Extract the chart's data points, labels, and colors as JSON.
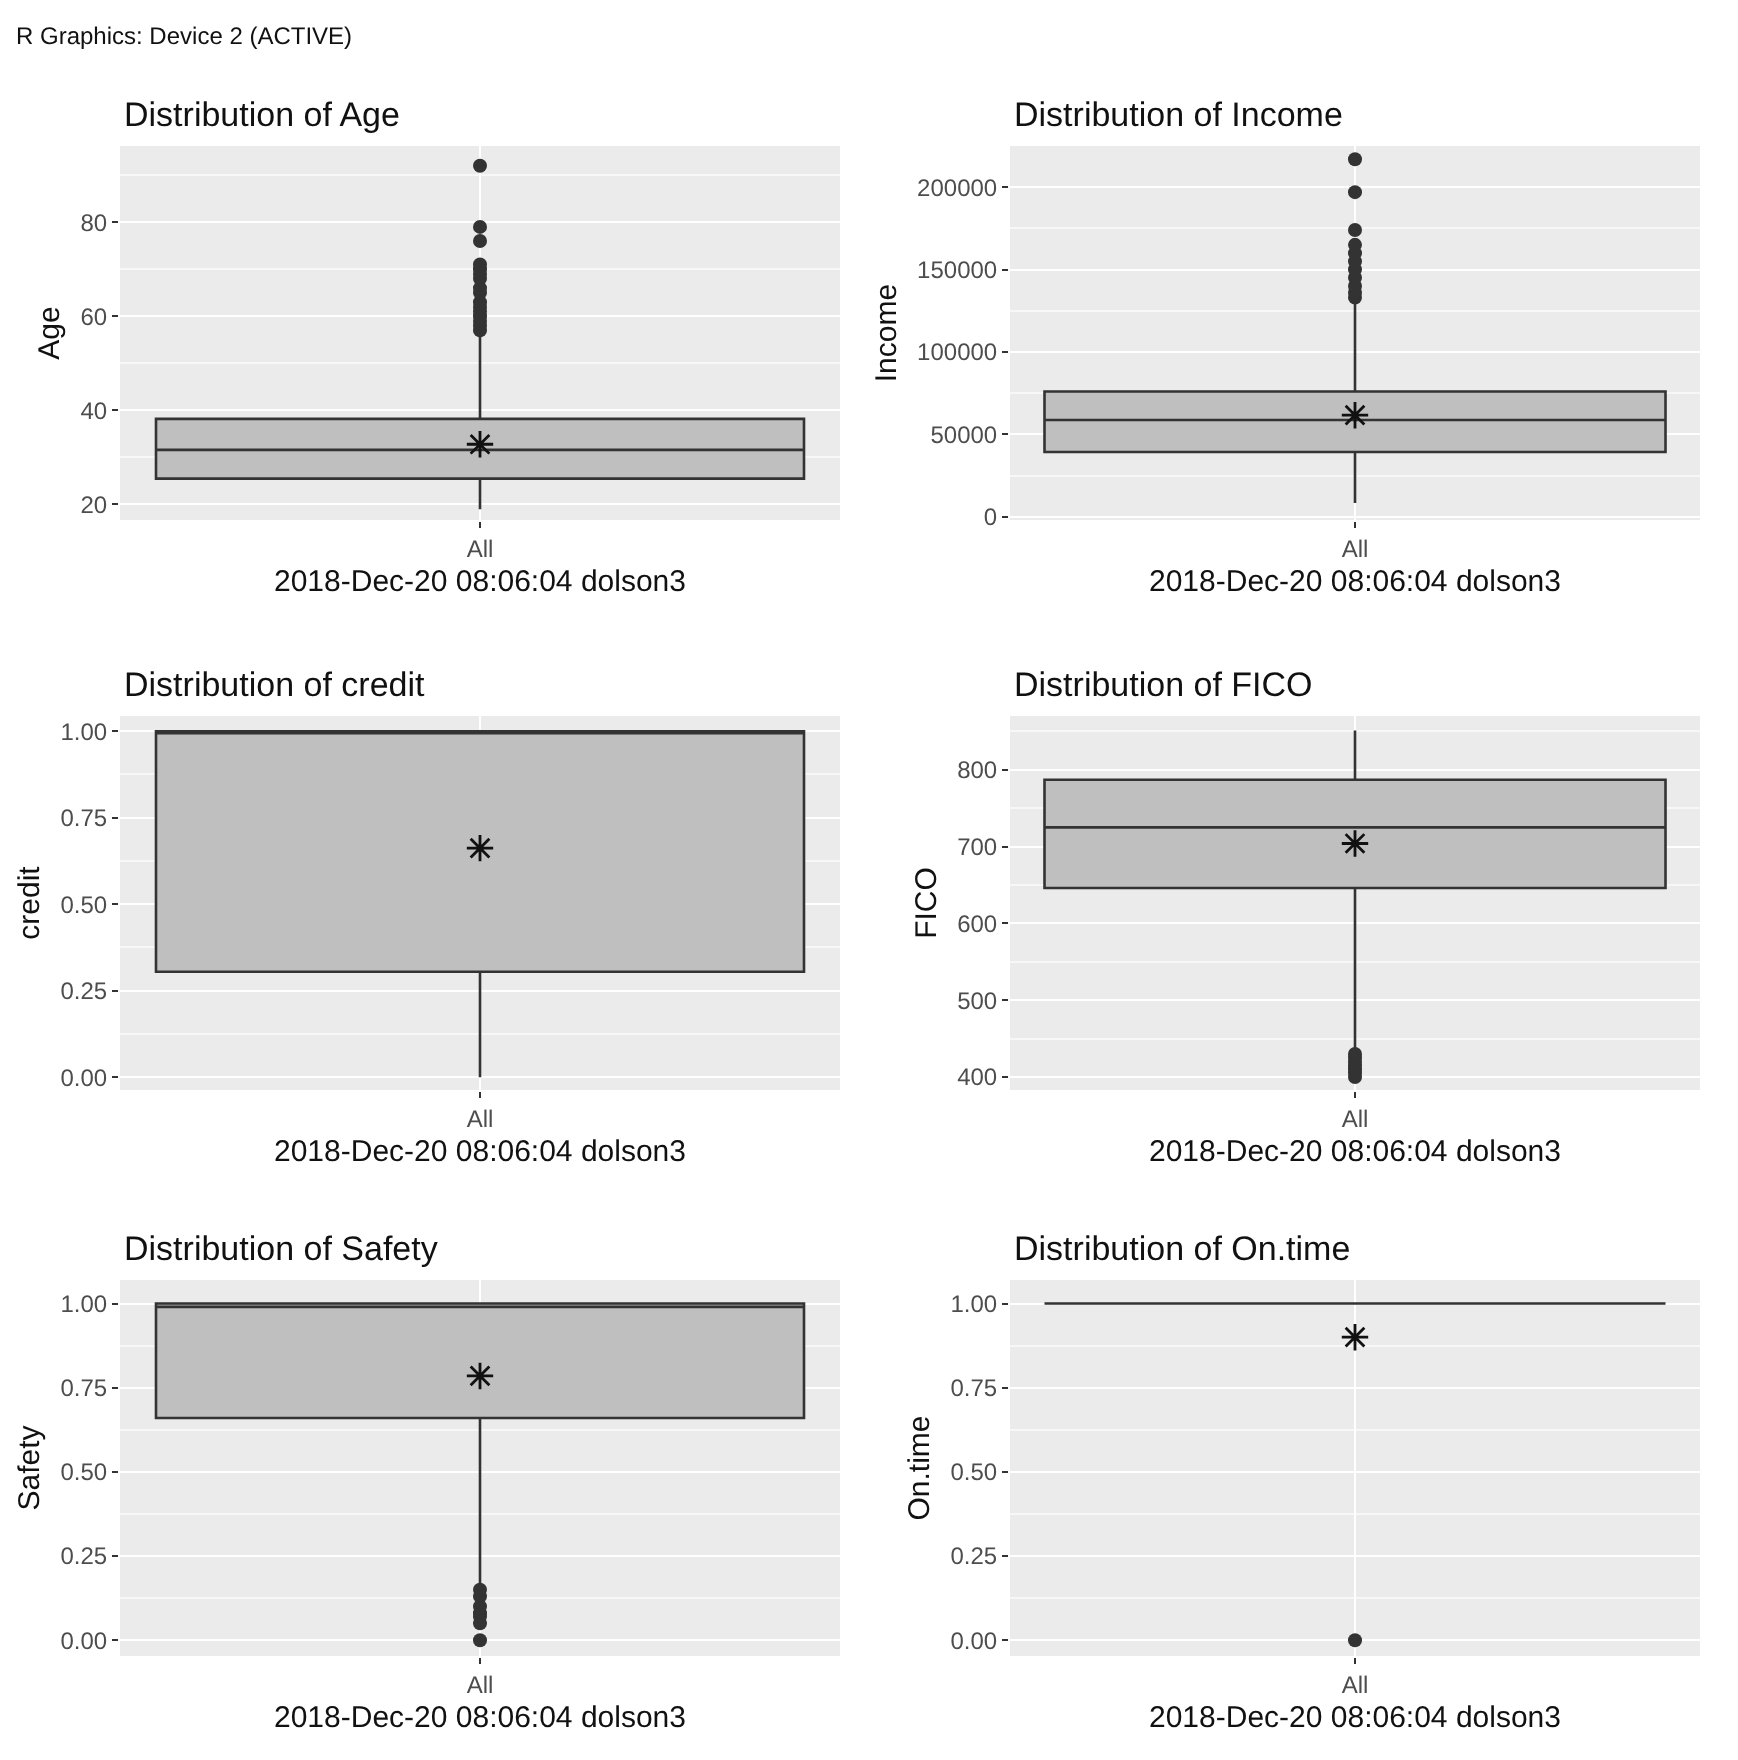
{
  "chart_data": [
    {
      "type": "box",
      "title": "Distribution of Age",
      "xlabel": "2018-Dec-20 08:06:04 dolson3",
      "ylabel": "Age",
      "annotations": [
        "R Graphics: Device 2 (ACTIVE)"
      ],
      "categories": [
        "All"
      ],
      "ylim": [
        16.7,
        96.2
      ],
      "yticks": [
        20,
        40,
        60,
        80
      ],
      "grid": true,
      "series": [
        {
          "color": "#bfbfbf",
          "boxes": [
            {
              "low": 19,
              "q1": 25.5,
              "median": 31.6,
              "q3": 38.2,
              "high": 56.5,
              "mean": 32.8,
              "outliers": [
                57,
                58,
                59,
                60,
                61,
                62,
                63,
                65,
                66,
                68,
                69,
                70,
                71,
                76,
                79,
                92
              ]
            }
          ]
        }
      ]
    },
    {
      "type": "box",
      "title": "Distribution of Income",
      "xlabel": "2018-Dec-20 08:06:04 dolson3",
      "ylabel": "Income",
      "categories": [
        "All"
      ],
      "ylim": [
        -2000,
        225000
      ],
      "yticks": [
        0,
        50000,
        100000,
        150000,
        200000
      ],
      "grid": true,
      "series": [
        {
          "color": "#bfbfbf",
          "boxes": [
            {
              "low": 8300,
              "q1": 39300,
              "median": 58700,
              "q3": 76000,
              "high": 131000,
              "mean": 61600,
              "outliers": [
                133000,
                136000,
                140000,
                145000,
                150000,
                155000,
                160000,
                165000,
                174000,
                197000,
                217000
              ]
            }
          ]
        }
      ]
    },
    {
      "type": "box",
      "title": "Distribution of credit",
      "xlabel": "2018-Dec-20 08:06:04 dolson3",
      "ylabel": "credit",
      "categories": [
        "All"
      ],
      "ylim": [
        -0.037,
        1.044
      ],
      "yticks": [
        {
          "value": 0,
          "label": "0.00"
        },
        {
          "value": 0.25,
          "label": "0.25"
        },
        {
          "value": 0.5,
          "label": "0.50"
        },
        {
          "value": 0.75,
          "label": "0.75"
        },
        {
          "value": 1,
          "label": "1.00"
        }
      ],
      "grid": true,
      "series": [
        {
          "color": "#bfbfbf",
          "boxes": [
            {
              "low": 0,
              "q1": 0.305,
              "median": 1,
              "q3": 1,
              "high": 1,
              "mean": 0.662
            }
          ]
        }
      ]
    },
    {
      "type": "box",
      "title": "Distribution of FICO",
      "xlabel": "2018-Dec-20 08:06:04 dolson3",
      "ylabel": "FICO",
      "categories": [
        "All"
      ],
      "ylim": [
        383,
        870
      ],
      "yticks": [
        400,
        500,
        600,
        700,
        800
      ],
      "grid": true,
      "series": [
        {
          "color": "#bfbfbf",
          "boxes": [
            {
              "low": 435,
              "q1": 646,
              "median": 725,
              "q3": 787,
              "high": 851,
              "mean": 704,
              "outliers": [
                400,
                405,
                410,
                415,
                420,
                425,
                430
              ]
            }
          ]
        }
      ]
    },
    {
      "type": "box",
      "title": "Distribution of Safety",
      "xlabel": "2018-Dec-20 08:06:04 dolson3",
      "ylabel": "Safety",
      "categories": [
        "All"
      ],
      "ylim": [
        -0.047,
        1.07
      ],
      "yticks": [
        {
          "value": 0,
          "label": "0.00"
        },
        {
          "value": 0.25,
          "label": "0.25"
        },
        {
          "value": 0.5,
          "label": "0.50"
        },
        {
          "value": 0.75,
          "label": "0.75"
        },
        {
          "value": 1,
          "label": "1.00"
        }
      ],
      "grid": true,
      "series": [
        {
          "color": "#bfbfbf",
          "boxes": [
            {
              "low": 0.16,
              "q1": 0.66,
              "median": 0.99,
              "q3": 1,
              "high": 1,
              "mean": 0.785,
              "outliers": [
                0,
                0.05,
                0.07,
                0.08,
                0.1,
                0.13,
                0.15
              ]
            }
          ]
        }
      ]
    },
    {
      "type": "box",
      "title": "Distribution of On.time",
      "xlabel": "2018-Dec-20 08:06:04 dolson3",
      "ylabel": "On.time",
      "categories": [
        "All"
      ],
      "ylim": [
        -0.047,
        1.07
      ],
      "yticks": [
        {
          "value": 0,
          "label": "0.00"
        },
        {
          "value": 0.25,
          "label": "0.25"
        },
        {
          "value": 0.5,
          "label": "0.50"
        },
        {
          "value": 0.75,
          "label": "0.75"
        },
        {
          "value": 1,
          "label": "1.00"
        }
      ],
      "grid": true,
      "series": [
        {
          "boxes": [
            {
              "low": 1,
              "q1": 1,
              "median": 1,
              "q3": 1,
              "high": 1,
              "mean": 0.9,
              "outliers": [
                0
              ]
            }
          ]
        }
      ]
    }
  ]
}
